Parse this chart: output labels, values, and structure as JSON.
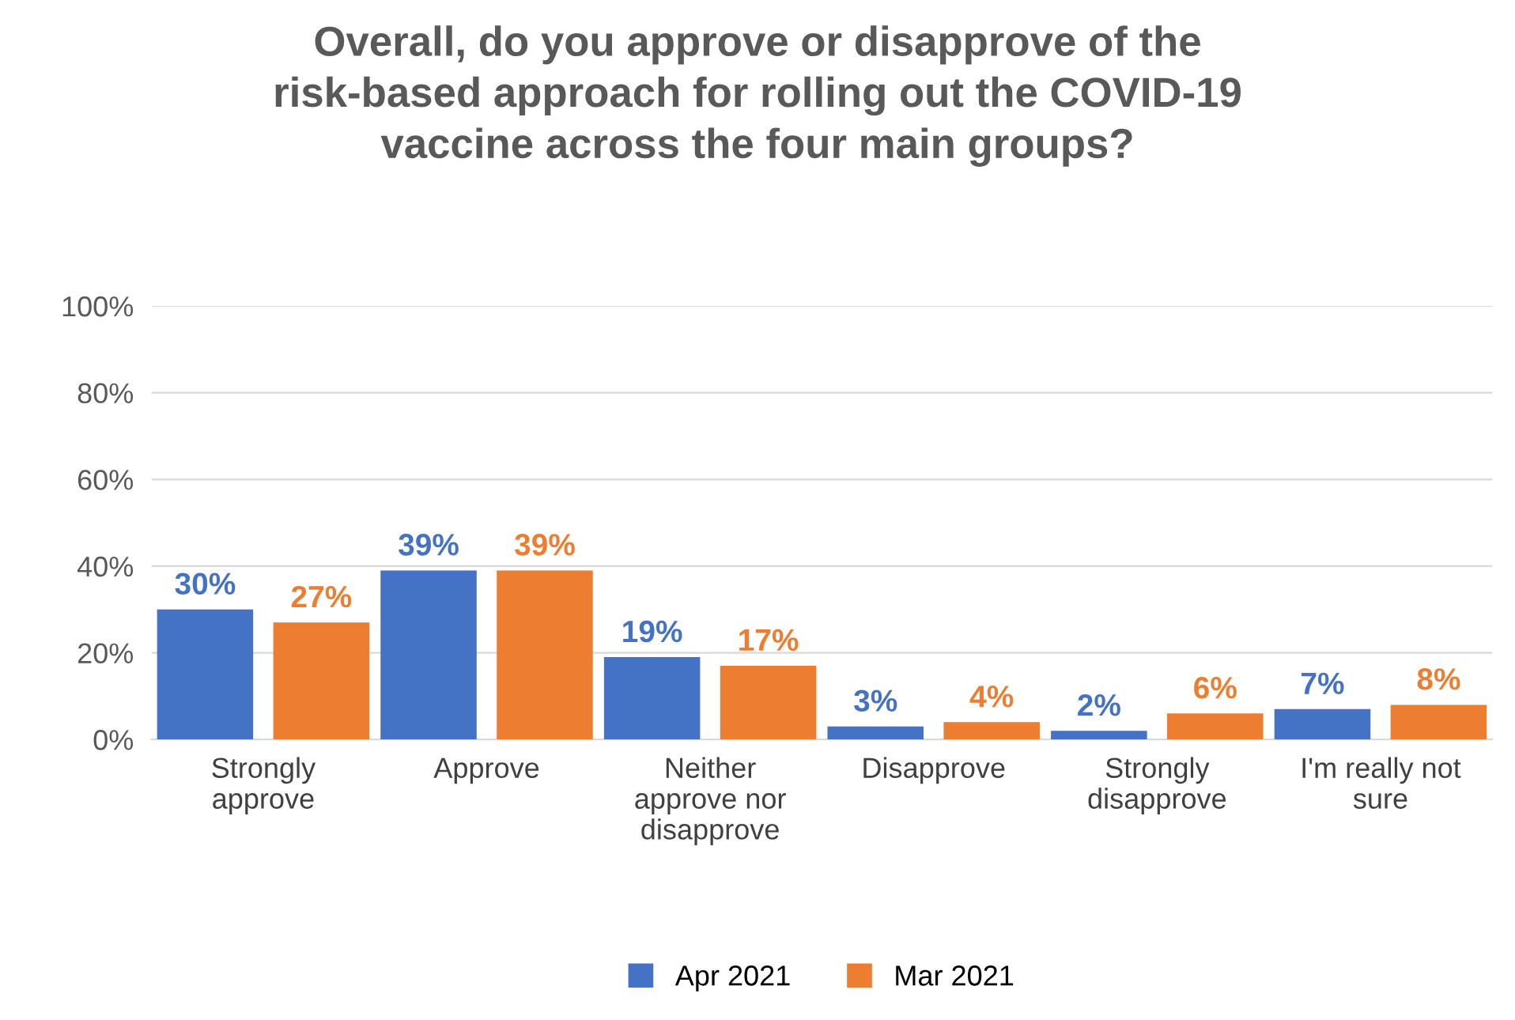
{
  "chart_data": {
    "type": "bar",
    "title": "Overall, do you approve or disapprove of the\nrisk-based approach for rolling out the COVID-19\nvaccine across the four main groups?",
    "categories": [
      "Strongly\napprove",
      "Approve",
      "Neither\napprove nor\ndisapprove",
      "Disapprove",
      "Strongly\ndisapprove",
      "I'm really not\nsure"
    ],
    "series": [
      {
        "name": "Apr 2021",
        "color": "#4472c4",
        "values": [
          30,
          39,
          19,
          3,
          2,
          7
        ],
        "value_labels": [
          "30%",
          "39%",
          "19%",
          "3%",
          "2%",
          "7%"
        ]
      },
      {
        "name": "Mar 2021",
        "color": "#ed7d31",
        "values": [
          27,
          39,
          17,
          4,
          6,
          8
        ],
        "value_labels": [
          "27%",
          "39%",
          "17%",
          "4%",
          "6%",
          "8%"
        ]
      }
    ],
    "ylim": [
      0,
      100
    ],
    "yticks": [
      {
        "value": 0,
        "label": "0%"
      },
      {
        "value": 20,
        "label": "20%"
      },
      {
        "value": 40,
        "label": "40%"
      },
      {
        "value": 60,
        "label": "60%"
      },
      {
        "value": 80,
        "label": "80%"
      },
      {
        "value": 100,
        "label": "100%"
      }
    ],
    "grid": "y",
    "legend": "bottom"
  }
}
